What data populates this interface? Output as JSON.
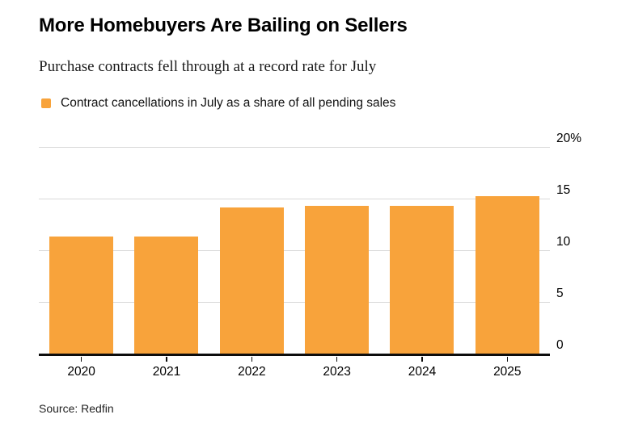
{
  "header": {
    "title": "More Homebuyers Are Bailing on Sellers",
    "subtitle": "Purchase contracts fell through at a record rate for July"
  },
  "legend": {
    "label": "Contract cancellations in July as a share of all pending sales",
    "swatch_color": "#F8A33B"
  },
  "source": "Source: Redfin",
  "chart_data": {
    "type": "bar",
    "categories": [
      "2020",
      "2021",
      "2022",
      "2023",
      "2024",
      "2025"
    ],
    "values": [
      11.4,
      11.4,
      14.2,
      14.4,
      14.4,
      15.3
    ],
    "series_label": "Contract cancellations in July as a share of all pending sales",
    "title": "More Homebuyers Are Bailing on Sellers",
    "xlabel": "",
    "ylabel": "",
    "ylim": [
      0,
      20
    ],
    "yticks": [
      0,
      5,
      10,
      15,
      20
    ],
    "ytick_labels": [
      "0",
      "5",
      "10",
      "15",
      "20%"
    ],
    "bar_color": "#F8A33B",
    "grid": true,
    "gridline_color": "#d8d8d8",
    "axis_color": "#0d0d0d",
    "legend_position": "top-left",
    "y_axis_side": "right"
  }
}
